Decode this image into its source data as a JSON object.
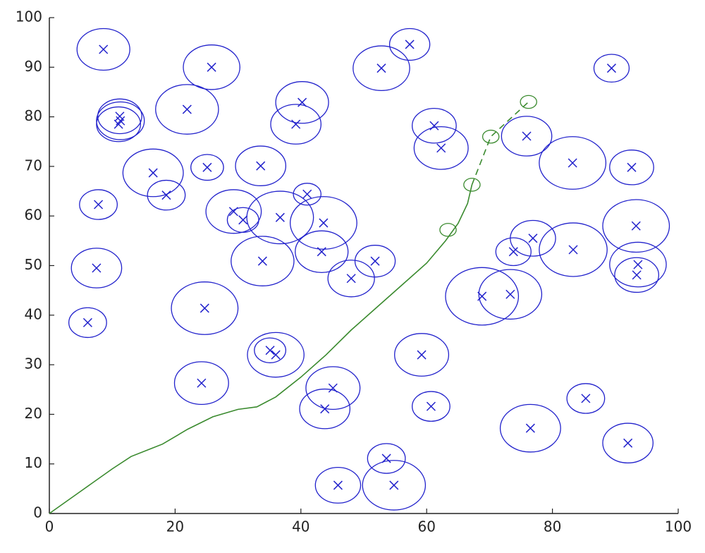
{
  "chart_data": {
    "type": "scatter",
    "xlim": [
      0,
      100
    ],
    "ylim": [
      0,
      100
    ],
    "xticks": [
      0,
      20,
      40,
      60,
      80,
      100
    ],
    "yticks": [
      0,
      10,
      20,
      30,
      40,
      50,
      60,
      70,
      80,
      90,
      100
    ],
    "series": [
      {
        "type": "scatter",
        "color": "#2222cc",
        "x": [
          8.6,
          25.8,
          52.8,
          57.3,
          89.4,
          21.9,
          40.2,
          39.2,
          11.2,
          11.0,
          11.3,
          61.2,
          62.3,
          75.9,
          83.2,
          92.6,
          16.5,
          25.1,
          33.6,
          18.6,
          7.8,
          41.0,
          29.3,
          30.8,
          36.7,
          43.6,
          43.3,
          33.9,
          51.8,
          48.0,
          7.5,
          6.1,
          24.7,
          68.8,
          73.3,
          73.8,
          76.9,
          83.3,
          93.3,
          93.6,
          93.4,
          35.1,
          36.0,
          59.2,
          24.2,
          45.1,
          43.8,
          60.7,
          85.3,
          76.5,
          92.0,
          53.6,
          45.9,
          54.8
        ],
        "values": [
          93.6,
          90.0,
          89.8,
          94.6,
          89.8,
          81.5,
          82.9,
          78.5,
          80.1,
          78.5,
          79.2,
          78.2,
          73.7,
          76.1,
          70.7,
          69.8,
          68.7,
          69.8,
          70.1,
          64.2,
          62.3,
          64.4,
          60.9,
          59.2,
          59.7,
          58.6,
          52.8,
          50.9,
          50.9,
          47.4,
          49.5,
          38.5,
          41.4,
          43.8,
          44.2,
          52.8,
          55.5,
          53.2,
          58.0,
          50.2,
          48.1,
          32.9,
          32.0,
          32.0,
          26.3,
          25.3,
          21.1,
          21.6,
          23.2,
          17.2,
          14.2,
          11.1,
          5.7,
          5.7
        ],
        "radii": [
          4.2,
          4.5,
          4.5,
          3.2,
          2.8,
          5.0,
          4.2,
          4.0,
          3.5,
          3.5,
          3.8,
          3.5,
          4.3,
          4.0,
          5.3,
          3.5,
          4.8,
          2.6,
          4.0,
          3.0,
          3.0,
          2.2,
          4.4,
          2.5,
          5.3,
          5.3,
          4.2,
          5.0,
          3.2,
          3.7,
          4.0,
          3.0,
          5.3,
          5.8,
          5.0,
          2.8,
          3.6,
          5.4,
          5.3,
          4.5,
          3.5,
          2.5,
          4.5,
          4.3,
          4.3,
          4.3,
          4.0,
          3.0,
          3.0,
          4.8,
          4.0,
          3.0,
          3.6,
          5.0
        ]
      },
      {
        "type": "line",
        "color": "#3a8a2e",
        "x": [
          0,
          5,
          10,
          13,
          18,
          22,
          26,
          30,
          33,
          36,
          40,
          44,
          48,
          52,
          56,
          60,
          63,
          65,
          66.5,
          67.2
        ],
        "values": [
          0,
          4.5,
          9,
          11.5,
          14,
          17,
          19.5,
          21,
          21.5,
          23.5,
          27.5,
          32,
          37,
          41.5,
          46,
          50.5,
          55,
          58.5,
          62.5,
          66.3
        ]
      },
      {
        "type": "line",
        "color": "#3a8a2e",
        "dashed": true,
        "x": [
          67.2,
          70.2,
          76.2
        ],
        "values": [
          66.3,
          76.0,
          83.0
        ]
      },
      {
        "type": "scatter",
        "color": "#3a8a2e",
        "hollow": true,
        "x": [
          63.4,
          67.2,
          70.2,
          76.2
        ],
        "values": [
          57.2,
          66.3,
          76.0,
          83.0
        ],
        "radii": [
          1.3,
          1.3,
          1.3,
          1.3
        ]
      }
    ]
  }
}
